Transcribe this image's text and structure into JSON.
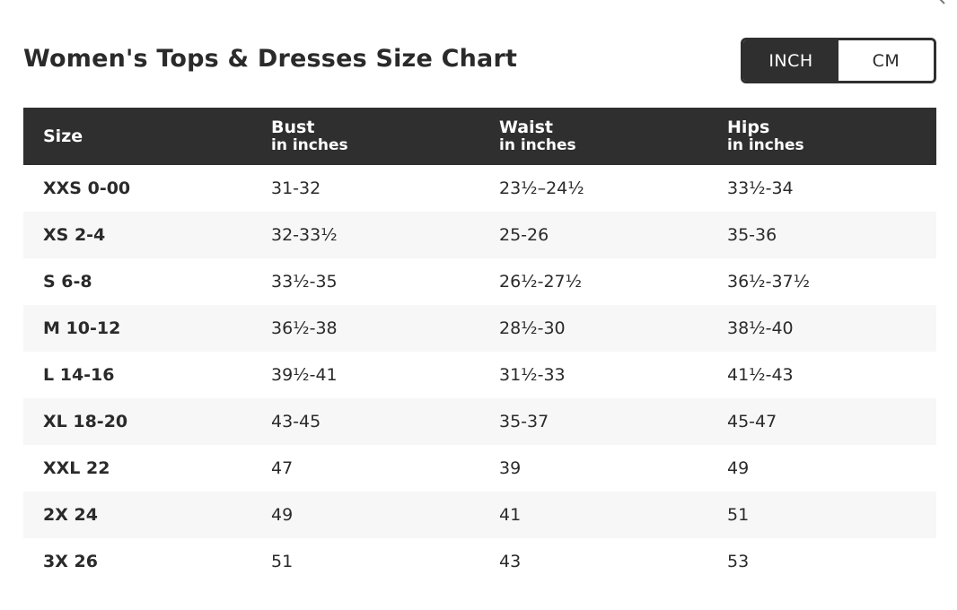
{
  "title": "Women's Tops & Dresses Size Chart",
  "unit_toggle": {
    "inch_label": "INCH",
    "cm_label": "CM",
    "selected": "INCH"
  },
  "table": {
    "headers": [
      {
        "label": "Size",
        "sub": ""
      },
      {
        "label": "Bust",
        "sub": "in inches"
      },
      {
        "label": "Waist",
        "sub": "in inches"
      },
      {
        "label": "Hips",
        "sub": "in inches"
      }
    ],
    "rows": [
      {
        "size": "XXS 0-00",
        "bust": "31-32",
        "waist": "23½–24½",
        "hips": "33½-34"
      },
      {
        "size": "XS 2-4",
        "bust": "32-33½",
        "waist": "25-26",
        "hips": "35-36"
      },
      {
        "size": "S 6-8",
        "bust": "33½-35",
        "waist": "26½-27½",
        "hips": "36½-37½"
      },
      {
        "size": "M 10-12",
        "bust": "36½-38",
        "waist": "28½-30",
        "hips": "38½-40"
      },
      {
        "size": "L 14-16",
        "bust": "39½-41",
        "waist": "31½-33",
        "hips": "41½-43"
      },
      {
        "size": "XL 18-20",
        "bust": "43-45",
        "waist": "35-37",
        "hips": "45-47"
      },
      {
        "size": "XXL 22",
        "bust": "47",
        "waist": "39",
        "hips": "49"
      },
      {
        "size": "2X 24",
        "bust": "49",
        "waist": "41",
        "hips": "51"
      },
      {
        "size": "3X 26",
        "bust": "51",
        "waist": "43",
        "hips": "53"
      }
    ]
  },
  "colors": {
    "header_bg": "#2f2f2f",
    "alt_row_bg": "#f7f7f7",
    "text": "#2a2a2a"
  }
}
